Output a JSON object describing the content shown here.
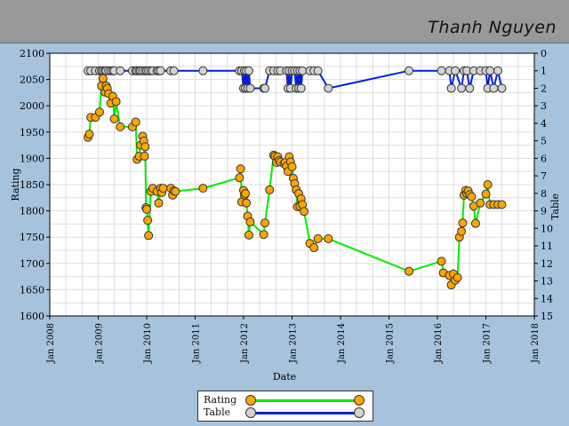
{
  "header": {
    "player_name": "Thanh Nguyen"
  },
  "legend": {
    "rating_label": "Rating",
    "table_label": "Table",
    "rating_color": "#00ee00",
    "rating_marker": "#ffa500",
    "table_color": "#0020dd",
    "table_marker": "#d3d3d3"
  },
  "chart_data": {
    "type": "line",
    "xlabel": "Date",
    "ylabel": "Rating",
    "y2label": "Table",
    "xlim": [
      "2008-01-01",
      "2018-01-01"
    ],
    "ylim": [
      1600,
      2100
    ],
    "y2lim": [
      0,
      15
    ],
    "y2_inverted": true,
    "grid": true,
    "legend_position": "bottom",
    "x_ticks": [
      "Jan 2008",
      "Jan 2009",
      "Jan 2010",
      "Jan 2011",
      "Jan 2012",
      "Jan 2013",
      "Jan 2014",
      "Jan 2015",
      "Jan 2016",
      "Jan 2017",
      "Jan 2018"
    ],
    "y_ticks": [
      1600,
      1650,
      1700,
      1750,
      1800,
      1850,
      1900,
      1950,
      2000,
      2050,
      2100
    ],
    "y2_ticks": [
      0,
      1,
      2,
      3,
      4,
      5,
      6,
      7,
      8,
      9,
      10,
      11,
      12,
      13,
      14,
      15
    ],
    "series": [
      {
        "name": "Rating",
        "x": [
          "2008-10-15",
          "2008-10-25",
          "2008-11-05",
          "2008-12-10",
          "2009-01-10",
          "2009-01-25",
          "2009-02-05",
          "2009-02-20",
          "2009-03-01",
          "2009-03-10",
          "2009-03-20",
          "2009-04-05",
          "2009-04-20",
          "2009-05-01",
          "2009-05-15",
          "2009-06-15",
          "2009-09-15",
          "2009-10-10",
          "2009-10-20",
          "2009-11-05",
          "2009-11-15",
          "2009-12-01",
          "2009-12-10",
          "2009-12-15",
          "2009-12-20",
          "2009-12-26",
          "2010-01-01",
          "2010-01-08",
          "2010-01-15",
          "2010-02-01",
          "2010-02-15",
          "2010-03-20",
          "2010-04-01",
          "2010-04-15",
          "2010-04-25",
          "2010-05-05",
          "2010-07-01",
          "2010-07-15",
          "2010-07-25",
          "2010-08-05",
          "2011-03-01",
          "2011-12-01",
          "2011-12-10",
          "2011-12-18",
          "2012-01-01",
          "2012-01-08",
          "2012-01-15",
          "2012-01-22",
          "2012-02-01",
          "2012-02-10",
          "2012-02-20",
          "2012-06-01",
          "2012-06-10",
          "2012-07-15",
          "2012-08-15",
          "2012-08-25",
          "2012-09-05",
          "2012-09-15",
          "2012-09-25",
          "2012-10-05",
          "2012-11-01",
          "2012-11-10",
          "2012-11-20",
          "2012-12-01",
          "2012-12-10",
          "2012-12-20",
          "2013-01-01",
          "2013-01-10",
          "2013-01-20",
          "2013-02-01",
          "2013-02-10",
          "2013-02-20",
          "2013-03-01",
          "2013-03-10",
          "2013-03-20",
          "2013-04-01",
          "2013-05-15",
          "2013-06-15",
          "2013-07-15",
          "2013-10-01",
          "2015-06-01",
          "2016-02-01",
          "2016-02-15",
          "2016-04-01",
          "2016-04-15",
          "2016-05-01",
          "2016-05-15",
          "2016-06-01",
          "2016-06-15",
          "2016-07-01",
          "2016-07-10",
          "2016-07-20",
          "2016-08-01",
          "2016-08-10",
          "2016-08-20",
          "2016-09-01",
          "2016-09-15",
          "2016-10-01",
          "2016-10-15",
          "2016-11-20",
          "2017-01-01",
          "2017-01-15",
          "2017-02-01",
          "2017-03-01",
          "2017-04-01",
          "2017-05-01"
        ],
        "values": [
          1940,
          1946,
          1978,
          1978,
          1988,
          2038,
          2052,
          2026,
          2038,
          2033,
          2023,
          2005,
          2018,
          1975,
          2008,
          1960,
          1960,
          1969,
          1898,
          1904,
          1925,
          1942,
          1933,
          1904,
          1922,
          1806,
          1803,
          1782,
          1753,
          1837,
          1843,
          1837,
          1815,
          1843,
          1835,
          1843,
          1843,
          1830,
          1838,
          1837,
          1843,
          1863,
          1880,
          1817,
          1839,
          1830,
          1833,
          1815,
          1790,
          1754,
          1779,
          1755,
          1777,
          1840,
          1906,
          1904,
          1892,
          1903,
          1896,
          1893,
          1890,
          1892,
          1885,
          1875,
          1903,
          1893,
          1884,
          1862,
          1852,
          1840,
          1808,
          1833,
          1809,
          1823,
          1812,
          1799,
          1738,
          1730,
          1747,
          1747,
          1685,
          1704,
          1682,
          1677,
          1659,
          1680,
          1668,
          1673,
          1750,
          1761,
          1777,
          1830,
          1839,
          1833,
          1838,
          1831,
          1827,
          1809,
          1776,
          1815,
          1832,
          1850,
          1812,
          1812,
          1812,
          1812
        ]
      },
      {
        "name": "Table",
        "x": [
          "2008-10-15",
          "2008-11-05",
          "2008-12-10",
          "2009-01-10",
          "2009-01-25",
          "2009-02-05",
          "2009-02-20",
          "2009-03-01",
          "2009-03-20",
          "2009-04-05",
          "2009-04-20",
          "2009-05-01",
          "2009-06-15",
          "2009-09-15",
          "2009-10-10",
          "2009-10-20",
          "2009-11-05",
          "2009-11-15",
          "2009-12-01",
          "2009-12-20",
          "2010-01-01",
          "2010-01-15",
          "2010-02-01",
          "2010-02-15",
          "2010-03-20",
          "2010-04-01",
          "2010-04-15",
          "2010-07-01",
          "2010-07-25",
          "2011-03-01",
          "2011-12-01",
          "2011-12-18",
          "2012-01-01",
          "2012-01-08",
          "2012-01-15",
          "2012-01-22",
          "2012-02-01",
          "2012-02-10",
          "2012-02-20",
          "2012-06-01",
          "2012-06-10",
          "2012-07-15",
          "2012-08-15",
          "2012-09-15",
          "2012-10-05",
          "2012-11-20",
          "2012-12-01",
          "2012-12-10",
          "2012-12-20",
          "2013-01-01",
          "2013-01-20",
          "2013-02-01",
          "2013-02-10",
          "2013-02-20",
          "2013-03-01",
          "2013-03-10",
          "2013-03-20",
          "2013-05-15",
          "2013-06-15",
          "2013-07-15",
          "2013-10-01",
          "2015-06-01",
          "2016-02-01",
          "2016-04-01",
          "2016-04-15",
          "2016-05-15",
          "2016-07-01",
          "2016-07-20",
          "2016-08-10",
          "2016-09-01",
          "2016-10-01",
          "2016-11-20",
          "2017-01-01",
          "2017-01-15",
          "2017-02-01",
          "2017-03-01",
          "2017-04-01",
          "2017-05-01"
        ],
        "values": [
          1,
          1,
          1,
          1,
          1,
          1,
          1,
          1,
          1,
          1,
          1,
          1,
          1,
          1,
          1,
          1,
          1,
          1,
          1,
          1,
          1,
          1,
          1,
          1,
          1,
          1,
          1,
          1,
          1,
          1,
          1,
          1,
          2,
          1,
          2,
          1,
          2,
          1,
          2,
          2,
          2,
          1,
          1,
          1,
          1,
          1,
          2,
          1,
          2,
          1,
          1,
          2,
          1,
          2,
          1,
          2,
          1,
          1,
          1,
          1,
          2,
          1,
          1,
          1,
          2,
          1,
          2,
          1,
          1,
          2,
          1,
          1,
          1,
          2,
          1,
          2,
          1,
          2
        ]
      }
    ]
  }
}
